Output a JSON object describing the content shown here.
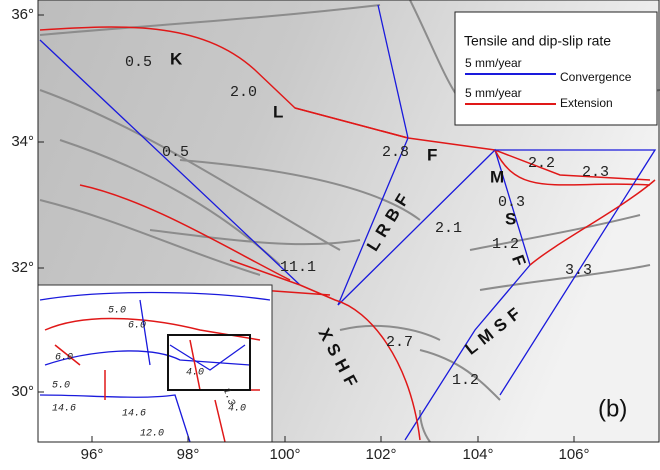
{
  "axes": {
    "x_ticks": [
      "96°",
      "98°",
      "100°",
      "102°",
      "104°",
      "106°"
    ],
    "y_ticks": [
      "36°",
      "34°",
      "32°",
      "30°"
    ]
  },
  "legend": {
    "title": "Tensile and dip-slip rate",
    "items": [
      {
        "scale": "5 mm/year",
        "label": "Convergence"
      },
      {
        "scale": "5 mm/year",
        "label": "Extension"
      }
    ]
  },
  "fault_labels": [
    "K",
    "L",
    "F",
    "LRBF",
    "M",
    "S",
    "F",
    "XSHF",
    "LMSF"
  ],
  "rate_labels": [
    "0.5",
    "2.0",
    "0.5",
    "2.8",
    "2.2",
    "2.3",
    "0.3",
    "2.1",
    "1.2",
    "3.3",
    "11.1",
    "2.7",
    "1.2"
  ],
  "inset_labels": [
    "5.0",
    "6.0",
    "6.0",
    "5.0",
    "4.0",
    "14.6",
    "14.6",
    "12.0",
    "4.0",
    "1.3"
  ],
  "panel_label": "(b)"
}
